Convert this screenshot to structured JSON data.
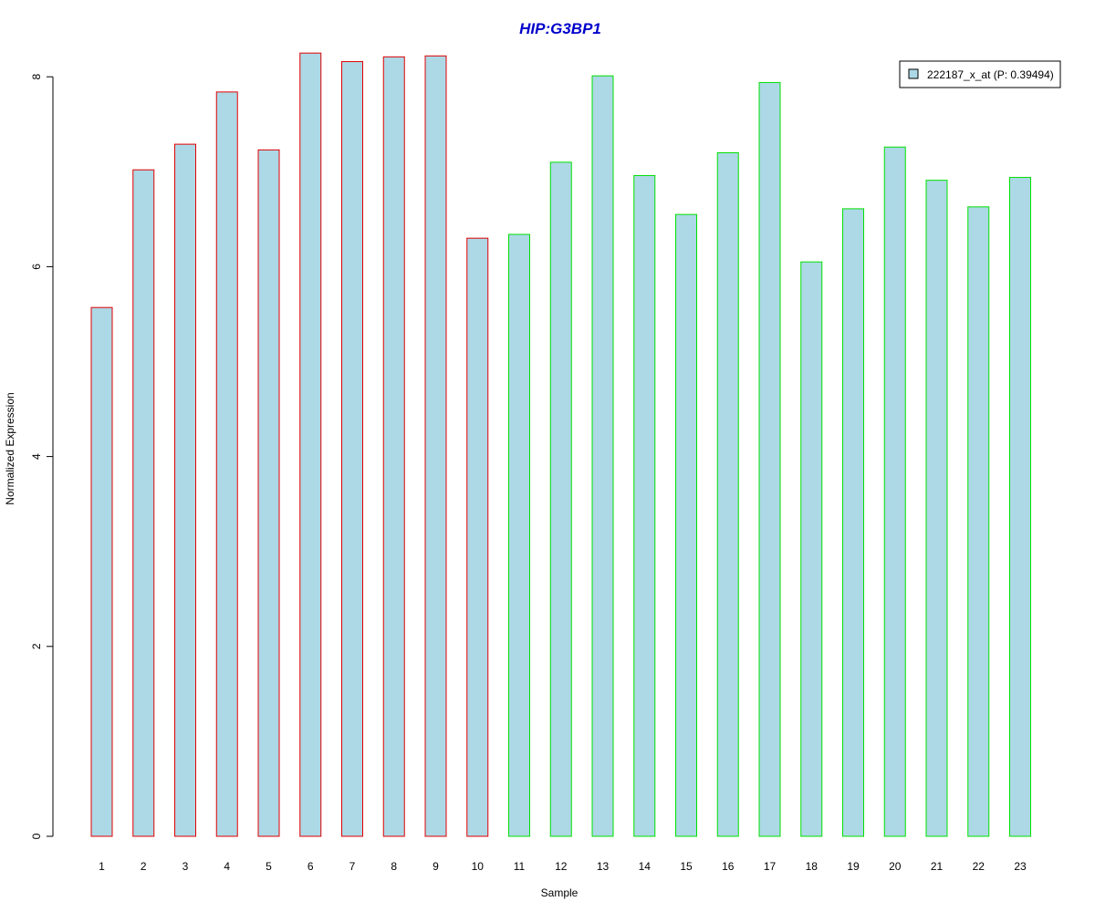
{
  "chart_data": {
    "type": "bar",
    "title": "HIP:G3BP1",
    "xlabel": "Sample",
    "ylabel": "Normalized Expression",
    "categories": [
      "1",
      "2",
      "3",
      "4",
      "5",
      "6",
      "7",
      "8",
      "9",
      "10",
      "11",
      "12",
      "13",
      "14",
      "15",
      "16",
      "17",
      "18",
      "19",
      "20",
      "21",
      "22",
      "23"
    ],
    "series": [
      {
        "name": "222187_x_at (P: 0.39494)",
        "values": [
          5.57,
          7.02,
          7.29,
          7.84,
          7.23,
          8.25,
          8.16,
          8.21,
          8.22,
          6.3,
          6.34,
          7.1,
          8.01,
          6.96,
          6.55,
          7.2,
          7.94,
          6.05,
          6.61,
          7.26,
          6.91,
          6.63,
          6.94
        ]
      }
    ],
    "group_border_colors": [
      "#e00000",
      "#e00000",
      "#e00000",
      "#e00000",
      "#e00000",
      "#e00000",
      "#e00000",
      "#e00000",
      "#e00000",
      "#e00000",
      "#00e000",
      "#00e000",
      "#00e000",
      "#00e000",
      "#00e000",
      "#00e000",
      "#00e000",
      "#00e000",
      "#00e000",
      "#00e000",
      "#00e000",
      "#00e000",
      "#00e000"
    ],
    "yticks": [
      "0",
      "2",
      "4",
      "6",
      "8"
    ],
    "ylim": [
      0,
      8.4
    ],
    "bar_fill": "#add8e6",
    "title_color": "#0000cc",
    "legend_position": "top-right",
    "grid": false
  }
}
